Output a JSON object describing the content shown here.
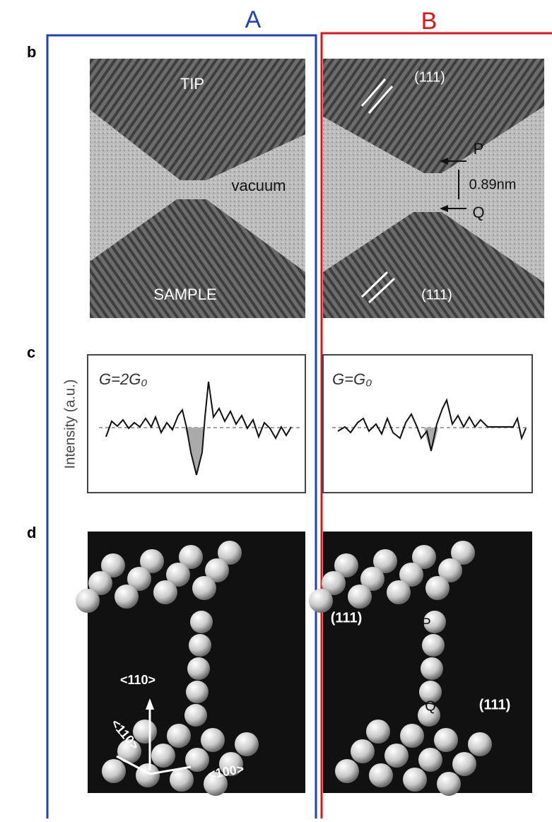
{
  "labels": {
    "a": "A",
    "b": "B"
  },
  "panels": {
    "b": {
      "label": "b",
      "left": {
        "tip": "TIP",
        "vacuum": "vacuum",
        "sample": "SAMPLE"
      },
      "right": {
        "plane_top": "(111)",
        "p": "P",
        "distance": "0.89nm",
        "q": "Q",
        "plane_bottom": "(111)"
      }
    },
    "c": {
      "label": "c",
      "y_label": "Intensity (a.u.)",
      "left": {
        "conductance": "G=2G₀"
      },
      "right": {
        "conductance": "G=G₀"
      }
    },
    "d": {
      "label": "d",
      "left": {
        "dir_up": "<110>",
        "dir_diag": "<110>",
        "dir_right": "<100>"
      },
      "right": {
        "plane_left": "(111)",
        "p": "P",
        "q": "Q",
        "plane_right": "(111)"
      }
    }
  }
}
